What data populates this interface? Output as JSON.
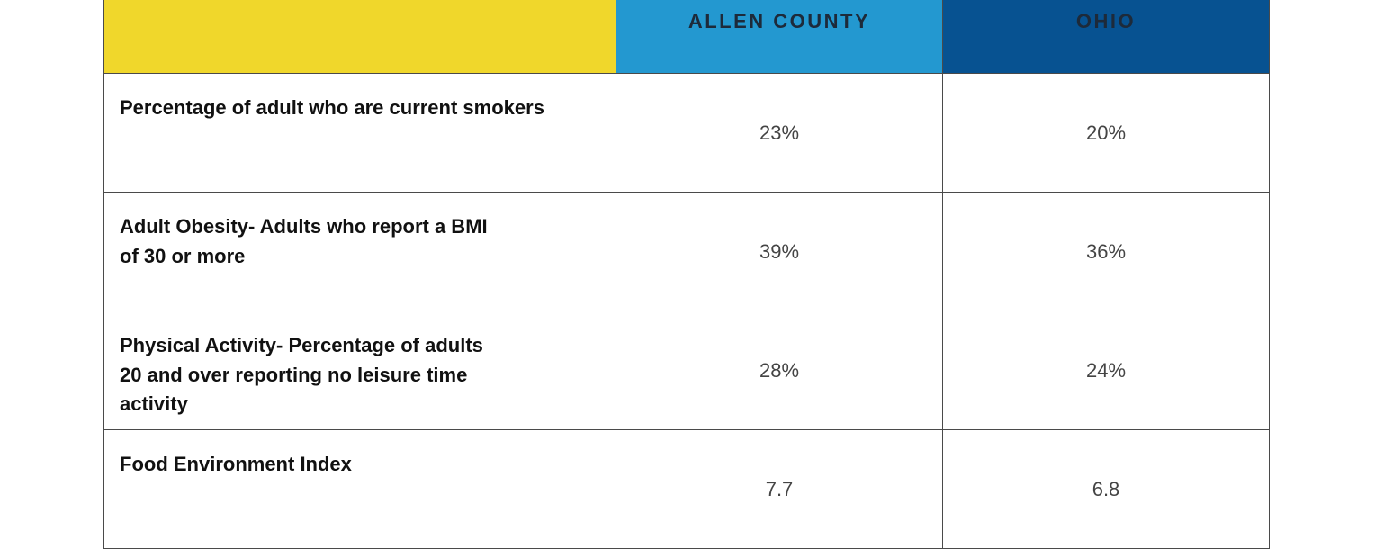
{
  "table": {
    "header": [
      "",
      "ALLEN COUNTY",
      "OHIO"
    ],
    "rows": [
      {
        "label": [
          "Percentage of adult who are current smokers"
        ],
        "values": [
          "23%",
          "20%"
        ]
      },
      {
        "label": [
          "Adult Obesity- Adults who report a BMI",
          "of 30 or more"
        ],
        "values": [
          "39%",
          "36%"
        ]
      },
      {
        "label": [
          "Physical Activity- Percentage of adults",
          "20 and over reporting no leisure time",
          "activity"
        ],
        "values": [
          "28%",
          "24%"
        ]
      },
      {
        "label": [
          "Food Environment Index"
        ],
        "values": [
          "7.7",
          "6.8"
        ]
      }
    ]
  }
}
